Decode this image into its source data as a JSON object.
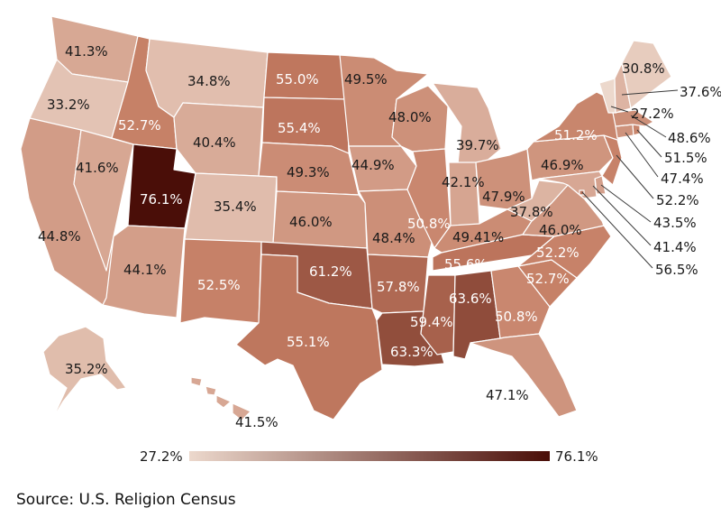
{
  "legend": {
    "min_label": "27.2%",
    "max_label": "76.1%",
    "min_value": 27.2,
    "max_value": 76.1,
    "color_low": "#ecd8cc",
    "color_high": "#4a0e08"
  },
  "source": "Source: U.S. Religion Census",
  "states": {
    "WA": {
      "label": "41.3%",
      "value": 41.3
    },
    "OR": {
      "label": "33.2%",
      "value": 33.2
    },
    "CA": {
      "label": "44.8%",
      "value": 44.8
    },
    "ID": {
      "label": "52.7%",
      "value": 52.7
    },
    "NV": {
      "label": "41.6%",
      "value": 41.6
    },
    "UT": {
      "label": "76.1%",
      "value": 76.1
    },
    "AZ": {
      "label": "44.1%",
      "value": 44.1
    },
    "MT": {
      "label": "34.8%",
      "value": 34.8
    },
    "WY": {
      "label": "40.4%",
      "value": 40.4
    },
    "CO": {
      "label": "35.4%",
      "value": 35.4
    },
    "NM": {
      "label": "52.5%",
      "value": 52.5
    },
    "ND": {
      "label": "55.0%",
      "value": 55.0
    },
    "SD": {
      "label": "55.4%",
      "value": 55.4
    },
    "NE": {
      "label": "49.3%",
      "value": 49.3
    },
    "KS": {
      "label": "46.0%",
      "value": 46.0
    },
    "OK": {
      "label": "61.2%",
      "value": 61.2
    },
    "TX": {
      "label": "55.1%",
      "value": 55.1
    },
    "MN": {
      "label": "49.5%",
      "value": 49.5
    },
    "IA": {
      "label": "44.9%",
      "value": 44.9
    },
    "MO": {
      "label": "48.4%",
      "value": 48.4
    },
    "AR": {
      "label": "57.8%",
      "value": 57.8
    },
    "LA": {
      "label": "63.3%",
      "value": 63.3
    },
    "WI": {
      "label": "48.0%",
      "value": 48.0
    },
    "IL": {
      "label": "50.8%",
      "value": 50.8
    },
    "MS": {
      "label": "59.4%",
      "value": 59.4
    },
    "MI": {
      "label": "39.7%",
      "value": 39.7
    },
    "IN": {
      "label": "42.1%",
      "value": 42.1
    },
    "KY": {
      "label": "49.41%",
      "value": 49.41
    },
    "TN": {
      "label": "55.6%",
      "value": 55.6
    },
    "AL": {
      "label": "63.6%",
      "value": 63.6
    },
    "OH": {
      "label": "47.9%",
      "value": 47.9
    },
    "WV": {
      "label": "37.8%",
      "value": 37.8
    },
    "GA": {
      "label": "50.8%",
      "value": 50.8
    },
    "FL": {
      "label": "47.1%",
      "value": 47.1
    },
    "SC": {
      "label": "52.7%",
      "value": 52.7
    },
    "NC": {
      "label": "52.2%",
      "value": 52.2
    },
    "VA": {
      "label": "46.0%",
      "value": 46.0
    },
    "PA": {
      "label": "46.9%",
      "value": 46.9
    },
    "NY": {
      "label": "51.2%",
      "value": 51.2
    },
    "ME": {
      "label": "30.8%",
      "value": 30.8
    },
    "NH": {
      "label": "37.6%",
      "value": 37.6
    },
    "VT": {
      "label": "27.2%",
      "value": 27.2
    },
    "MA": {
      "label": "48.6%",
      "value": 48.6
    },
    "RI": {
      "label": "51.5%",
      "value": 51.5
    },
    "CT": {
      "label": "47.4%",
      "value": 47.4
    },
    "NJ": {
      "label": "52.2%",
      "value": 52.2
    },
    "DE": {
      "label": "43.5%",
      "value": 43.5
    },
    "MD": {
      "label": "41.4%",
      "value": 41.4
    },
    "DC": {
      "label": "56.5%",
      "value": 56.5
    },
    "AK": {
      "label": "35.2%",
      "value": 35.2
    },
    "HI": {
      "label": "41.5%",
      "value": 41.5
    }
  }
}
